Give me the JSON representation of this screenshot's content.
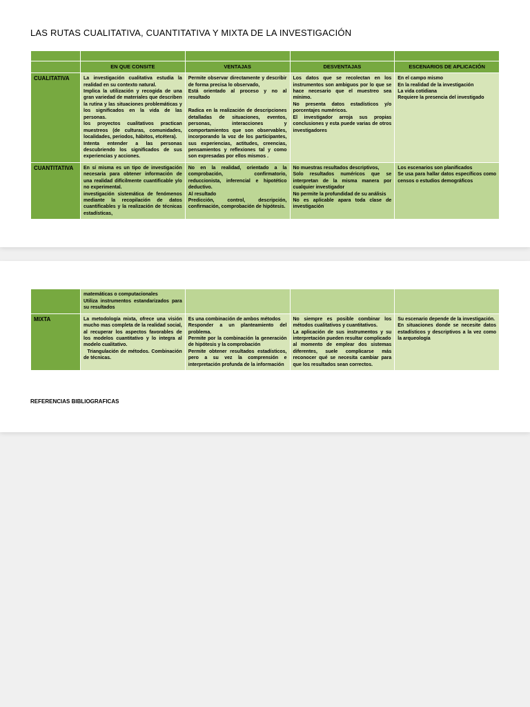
{
  "title": "LAS RUTAS CUALITATIVA, CUANTITATIVA Y MIXTA DE LA INVESTIGACIÓN",
  "headers": {
    "c1": "EN QUE CONSITE",
    "c2": "VENTAJAS",
    "c3": "DESVENTAJAS",
    "c4": "ESCENARIOS DE APLICACIÓN"
  },
  "rows": {
    "cuali": {
      "label": "CUALITATIVA",
      "c1": "La investigación cualitativa estudia la realidad en su contexto natural.\nImplica la utilización y recogida de una gran variedad de materiales que describen la rutina y las situaciones problemáticas y los significados en la vida de las personas.\nlos proyectos cualitativos practican muestreos (de culturas, comunidades, localidades, periodos, hábitos, etcétera).\nIntenta entender a las personas descubriendo los significados de sus experiencias y acciones.",
      "c2": "Permite observar directamente y describir de forma precisa lo observado,\nEstá orientado al proceso y no al resultado\n\nRadica en la realización de descripciones detalladas de situaciones, eventos, personas, interacciones y comportamientos que son observables, incorporando la voz de los participantes, sus experiencias, actitudes, creencias, pensamientos y reflexiones tal y como son expresadas por ellos mismos .",
      "c3": "Los datos que se recolectan en los instrumentos son ambiguos por lo que se hace necesario que el muestreo sea mínimo.\nNo presenta datos estadísticos y/o porcentajes numéricos.\nEl investigador arroja sus propias conclusiones y esta puede varias de otros investigadores",
      "c4": "En el campo mismo\nEn la realidad de la investigación\nLa vida cotidiana\nRequiere la presencia del investigado"
    },
    "cuanti": {
      "label": "CUANTITATIVA",
      "c1": "En sí misma es un tipo de investigación necesaria para obtener información de una realidad difícilmente cuantificable y/o no experimental.\ninvestigación sistemática de fenómenos mediante la recopilación de datos cuantificables y la realización de técnicas estadísticas,",
      "c2": "No en la realidad, orientado a la comprobación, confirmatorio, reduccionista, inferencial e hipotético deductivo.\nAl resultado\nPredicción, control, descripción, confirmación, comprobación de hipótesis.",
      "c3": "No muestras resultados descriptivos,\nSolo resultados numéricos que se interpretan de la misma manera por cualquier investigador\nNo permite la profundidad de su análisis\nNo es aplicable apara toda clase de investigación",
      "c4": "Los escenarios son planificados\nSe usa para hallar datos específicos como censos o estudios demográficos"
    },
    "cuanti_cont": {
      "c1": "matemáticas o computacionales\nUtiliza instrumentos estandarizados para su resultados"
    },
    "mixta": {
      "label": "MIXTA",
      "c1": "La metodología mixta, ofrece una visión mucho mas completa de la realidad social, al recuperar los aspectos favorables de los modelos cuantitativo y lo integra al modelo cualitativo.\n  Triangulación de métodos. Combinación de técnicas.",
      "c2": "Es una combinación de ambos métodos\nResponder a un planteamiento del problema.\nPermite por la combinación la generación de hipótesis y la comprobación\nPermite obtener resultados estadísticos, pero a su vez la comprensión e interpretación profunda de la información",
      "c3": "No siempre es posible combinar los métodos cualitativos y cuantitativos.\nLa aplicación de sus instrumentos y su interpretación pueden resultar complicado\nal momento de emplear dos sistemas diferentes, suele complicarse más reconocer qué se necesita cambiar para que los resultados sean correctos.",
      "c4": "Su escenario depende de la investigación.\nEn situaciones donde se necesite datos estadísticos y descriptivos a la vez como la arqueología"
    }
  },
  "footer": "REFERENCIAS BIBLIOGRAFICAS",
  "colors": {
    "header": "#77a940",
    "light": "#d7e5b8",
    "med": "#bdd695"
  }
}
